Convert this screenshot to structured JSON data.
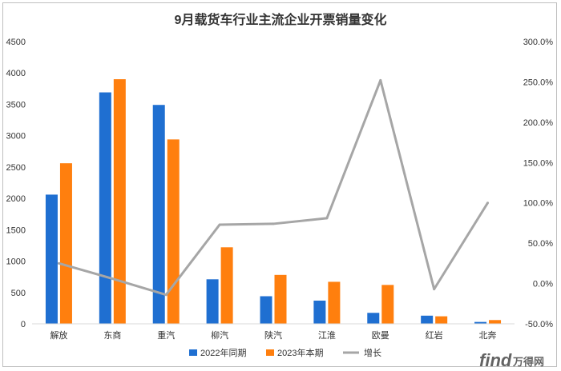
{
  "chart_data": {
    "type": "bar",
    "title": "9月载货车行业主流企业开票销量变化",
    "categories": [
      "解放",
      "东商",
      "重汽",
      "柳汽",
      "陕汽",
      "江淮",
      "欧曼",
      "红岩",
      "北奔"
    ],
    "series": [
      {
        "name": "2022年同期",
        "type": "bar",
        "axis": "left",
        "color": "#1f6fd1",
        "values": [
          2060,
          3690,
          3490,
          710,
          440,
          370,
          175,
          130,
          30
        ]
      },
      {
        "name": "2023年本期",
        "type": "bar",
        "axis": "left",
        "color": "#ff7f0e",
        "values": [
          2560,
          3900,
          2940,
          1220,
          780,
          670,
          620,
          120,
          60
        ]
      },
      {
        "name": "增长",
        "type": "line",
        "axis": "right",
        "color": "#a6a6a6",
        "values": [
          25,
          6,
          -14,
          73,
          74,
          81,
          252,
          -7,
          100
        ]
      }
    ],
    "y_left": {
      "min": 0,
      "max": 4500,
      "step": 500,
      "ticks": [
        "0",
        "500",
        "1000",
        "1500",
        "2000",
        "2500",
        "3000",
        "3500",
        "4000",
        "4500"
      ]
    },
    "y_right": {
      "min": -50,
      "max": 300,
      "step": 50,
      "ticks": [
        "-50.0%",
        "0.0%",
        "50.0%",
        "100.0%",
        "150.0%",
        "200.0%",
        "250.0%",
        "300.0%"
      ]
    },
    "legend_position": "bottom",
    "grid": false
  },
  "watermark": {
    "text": "find",
    "suffix": "万得网"
  }
}
